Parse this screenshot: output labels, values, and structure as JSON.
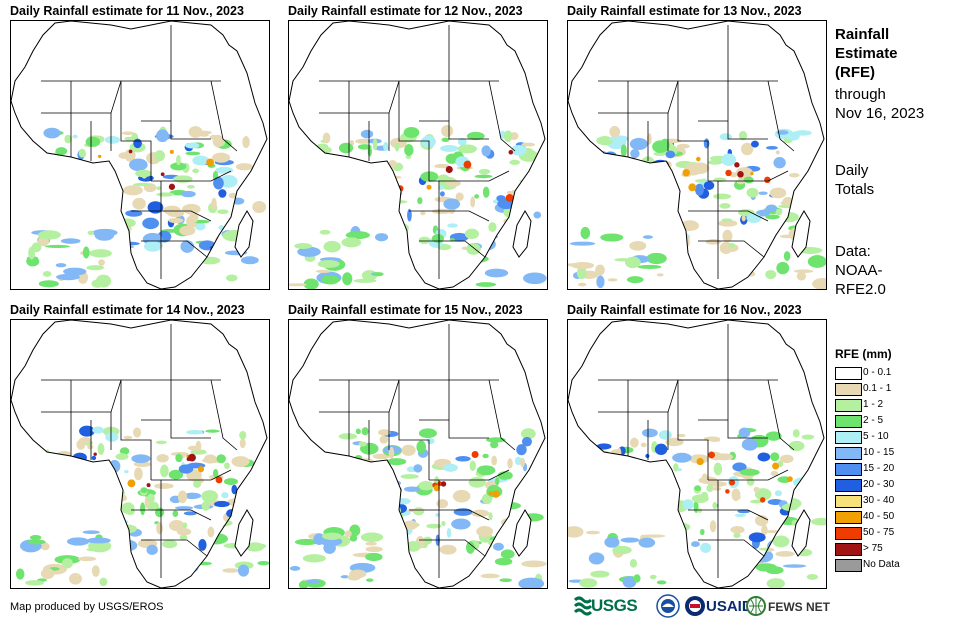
{
  "panels": [
    {
      "title": "Daily Rainfall estimate for 11 Nov., 2023",
      "date": "11 Nov., 2023"
    },
    {
      "title": "Daily Rainfall estimate for 12 Nov., 2023",
      "date": "12 Nov., 2023"
    },
    {
      "title": "Daily Rainfall estimate for 13 Nov., 2023",
      "date": "13 Nov., 2023"
    },
    {
      "title": "Daily Rainfall estimate for 14 Nov., 2023",
      "date": "14 Nov., 2023"
    },
    {
      "title": "Daily Rainfall estimate for 15 Nov., 2023",
      "date": "15 Nov., 2023"
    },
    {
      "title": "Daily Rainfall estimate for 16 Nov., 2023",
      "date": "16 Nov., 2023"
    }
  ],
  "sidebar": {
    "title_line1": "Rainfall",
    "title_line2": "Estimate",
    "title_line3": "(RFE)",
    "through": "through",
    "through_date": "Nov 16, 2023",
    "totals_line1": "Daily",
    "totals_line2": "Totals",
    "data_line1": "Data:",
    "data_line2": "NOAA-",
    "data_line3": "RFE2.0"
  },
  "legend": {
    "title": "RFE (mm)",
    "items": [
      {
        "label": "0 - 0.1",
        "color": "#ffffff"
      },
      {
        "label": "0.1 - 1",
        "color": "#e8d9b5"
      },
      {
        "label": "1 - 2",
        "color": "#b4f0a0"
      },
      {
        "label": "2 - 5",
        "color": "#6ee36e"
      },
      {
        "label": "5 - 10",
        "color": "#aeeef5"
      },
      {
        "label": "10 - 15",
        "color": "#82b8f5"
      },
      {
        "label": "15 - 20",
        "color": "#4f8ff0"
      },
      {
        "label": "20 - 30",
        "color": "#1f5fe0"
      },
      {
        "label": "30 - 40",
        "color": "#f7e17a"
      },
      {
        "label": "40 - 50",
        "color": "#f0a000"
      },
      {
        "label": "50 - 75",
        "color": "#f03c00"
      },
      {
        "label": "> 75",
        "color": "#a01414"
      },
      {
        "label": "No Data",
        "color": "#9a9a9a"
      }
    ]
  },
  "footer": {
    "credit": "Map produced by USGS/EROS",
    "logos": {
      "usgs": "USGS",
      "noaa": "NOAA",
      "usaid": "USAID",
      "fews": "FEWS NET"
    }
  }
}
